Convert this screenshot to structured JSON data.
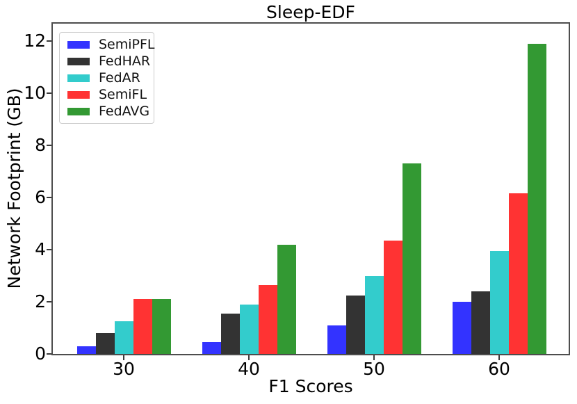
{
  "chart_data": {
    "type": "bar",
    "title": "Sleep-EDF",
    "xlabel": "F1 Scores",
    "ylabel": "Network Footprint (GB)",
    "categories": [
      "30",
      "40",
      "50",
      "60"
    ],
    "series": [
      {
        "name": "SemiPFL",
        "color": "#3333ff",
        "values": [
          0.3,
          0.45,
          1.1,
          2.0
        ]
      },
      {
        "name": "FedHAR",
        "color": "#333333",
        "values": [
          0.8,
          1.55,
          2.25,
          2.4
        ]
      },
      {
        "name": "FedAR",
        "color": "#33cccc",
        "values": [
          1.25,
          1.9,
          3.0,
          3.95
        ]
      },
      {
        "name": "SemiFL",
        "color": "#ff3333",
        "values": [
          2.1,
          2.65,
          4.35,
          6.15
        ]
      },
      {
        "name": "FedAVG",
        "color": "#339933",
        "values": [
          2.1,
          4.2,
          7.3,
          11.9
        ]
      }
    ],
    "yticks": [
      0,
      2,
      4,
      6,
      8,
      10,
      12
    ],
    "ylim": [
      0,
      12.67
    ],
    "grid": false,
    "legend_position": "upper-left"
  }
}
